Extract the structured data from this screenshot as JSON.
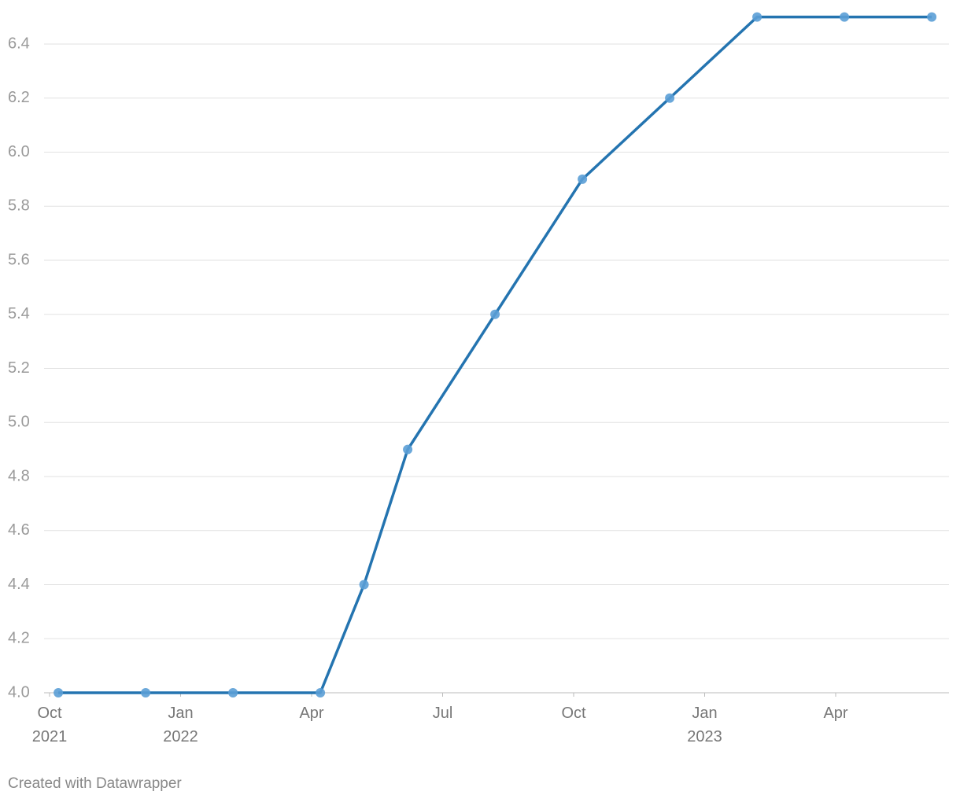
{
  "chart_data": {
    "type": "line",
    "x": [
      "2021-10",
      "2021-12",
      "2022-02",
      "2022-04",
      "2022-05",
      "2022-06",
      "2022-08",
      "2022-10",
      "2022-12",
      "2023-02",
      "2023-04",
      "2023-06"
    ],
    "values": [
      4.0,
      4.0,
      4.0,
      4.0,
      4.4,
      4.9,
      5.4,
      5.9,
      6.2,
      6.5,
      6.5,
      6.5
    ],
    "color": "#2474b0",
    "marker_color": "#5b9fd6",
    "xlim": [
      "2021-10",
      "2023-06"
    ],
    "xticks": [
      {
        "value": "2021-10",
        "label": "Oct\n2021"
      },
      {
        "value": "2022-01",
        "label": "Jan\n2022"
      },
      {
        "value": "2022-04",
        "label": "Apr"
      },
      {
        "value": "2022-07",
        "label": "Jul"
      },
      {
        "value": "2022-10",
        "label": "Oct"
      },
      {
        "value": "2023-01",
        "label": "Jan\n2023"
      },
      {
        "value": "2023-04",
        "label": "Apr"
      }
    ],
    "ylim": [
      4,
      6.5
    ],
    "yticks": [
      {
        "value": 4,
        "label": "4.0"
      },
      4.2,
      4.4,
      4.6,
      4.8,
      {
        "value": 5,
        "label": "5.0"
      },
      5.2,
      5.4,
      5.6,
      5.8,
      {
        "value": 6,
        "label": "6.0"
      },
      6.2,
      6.4
    ],
    "grid": true,
    "credit": "Created with Datawrapper"
  }
}
